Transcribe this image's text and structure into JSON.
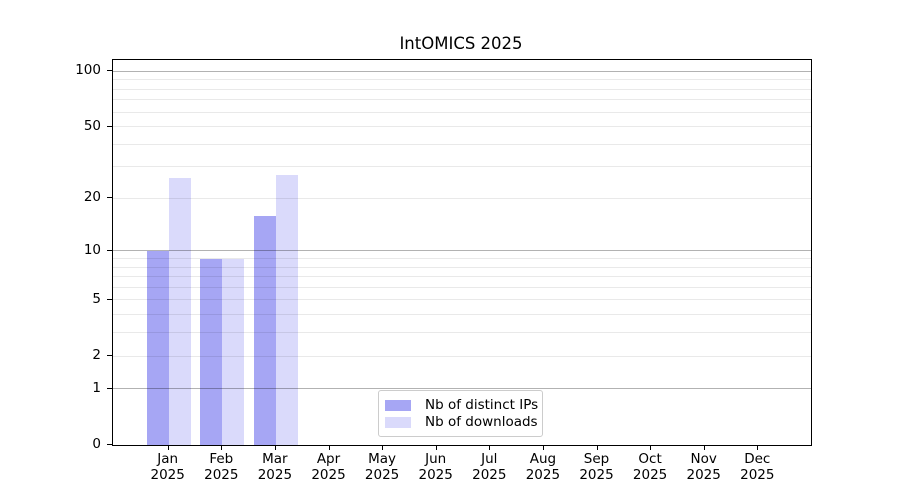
{
  "chart_data": {
    "type": "bar",
    "title": "IntOMICS 2025",
    "categories": [
      "Jan",
      "Feb",
      "Mar",
      "Apr",
      "May",
      "Jun",
      "Jul",
      "Aug",
      "Sep",
      "Oct",
      "Nov",
      "Dec"
    ],
    "category_year": "2025",
    "series": [
      {
        "name": "Nb of distinct IPs",
        "color": "#a6a6f4",
        "values": [
          10,
          9,
          16,
          0,
          0,
          0,
          0,
          0,
          0,
          0,
          0,
          0
        ]
      },
      {
        "name": "Nb of downloads",
        "color": "#dadafb",
        "values": [
          26,
          9,
          27,
          0,
          0,
          0,
          0,
          0,
          0,
          0,
          0,
          0
        ]
      }
    ],
    "yscale": "log1p",
    "ylim": [
      0,
      115
    ],
    "yticks_labeled": [
      0,
      1,
      2,
      5,
      10,
      20,
      50,
      100
    ],
    "yticks_major_grid": [
      1,
      10,
      100
    ],
    "yticks_minor_grid": [
      2,
      3,
      4,
      5,
      6,
      7,
      8,
      9,
      20,
      30,
      40,
      50,
      60,
      70,
      80,
      90
    ],
    "grid": "horizontal",
    "legend_position": "bottom-center"
  },
  "colors": {
    "background": "#ffffff",
    "axis": "#000000",
    "text": "#000000",
    "grid_major": "rgba(0,0,0,0.30)",
    "grid_minor": "rgba(0,0,0,0.085)",
    "legend_border": "#cccccc"
  }
}
